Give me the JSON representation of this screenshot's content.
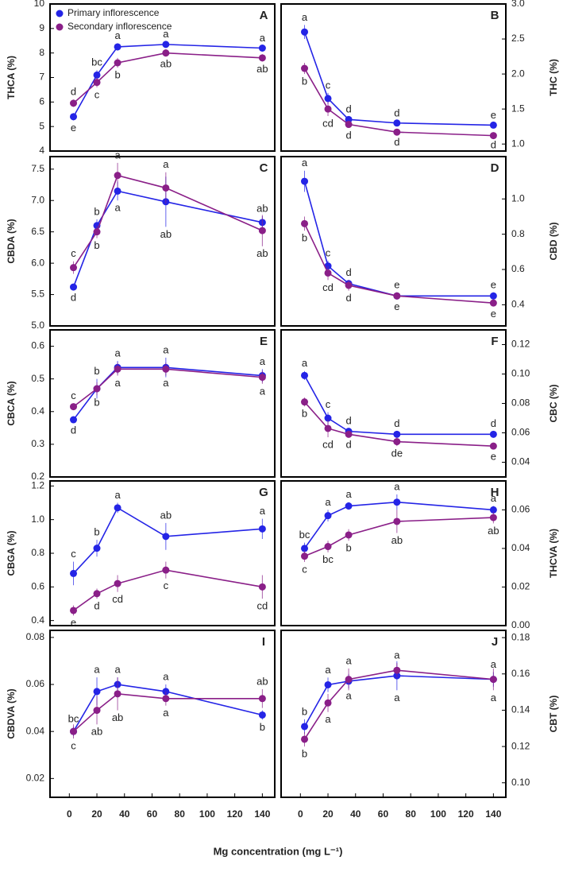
{
  "x_axis": {
    "x": [
      3,
      20,
      35,
      70,
      140
    ],
    "xlim": [
      -14,
      149
    ],
    "xticks": [
      0,
      20,
      40,
      60,
      80,
      100,
      120,
      140
    ],
    "xlabel": "Mg concentration (mg L⁻¹)"
  },
  "legend": [
    {
      "name": "Primary inflorescence",
      "color": "#2424e6"
    },
    {
      "name": "Secondary inflorescence",
      "color": "#8a1f88"
    }
  ],
  "chart_data": [
    {
      "type": "line",
      "panel": "A",
      "ylabel": "THCA (%)",
      "ylim": [
        4,
        10
      ],
      "yticks": [
        4,
        5,
        6,
        7,
        8,
        9,
        10
      ],
      "series": [
        {
          "color": "#2424e6",
          "values": [
            5.4,
            7.1,
            8.25,
            8.35,
            8.2
          ],
          "errors": [
            0.15,
            0.2,
            0.15,
            0.1,
            0.1
          ],
          "letters": [
            "e",
            "bc",
            "a",
            "a",
            "a"
          ]
        },
        {
          "color": "#8a1f88",
          "values": [
            5.95,
            6.8,
            7.6,
            8.0,
            7.8
          ],
          "errors": [
            0.15,
            0.2,
            0.2,
            0.15,
            0.15
          ],
          "letters": [
            "d",
            "c",
            "b",
            "ab",
            "ab"
          ]
        }
      ]
    },
    {
      "type": "line",
      "panel": "B",
      "ylabel": "THC (%)",
      "ylim": [
        0.9,
        3.0
      ],
      "yticks": [
        {
          "value": 1.0,
          "label": "1.0"
        },
        1.5,
        {
          "value": 2.0,
          "label": "2.0"
        },
        2.5,
        {
          "value": 3.0,
          "label": "3.0"
        }
      ],
      "series": [
        {
          "color": "#2424e6",
          "values": [
            2.6,
            1.65,
            1.35,
            1.3,
            1.27
          ],
          "errors": [
            0.1,
            0.08,
            0.04,
            0.03,
            0.03
          ],
          "letters": [
            "a",
            "c",
            "d",
            "d",
            "e"
          ]
        },
        {
          "color": "#8a1f88",
          "values": [
            2.08,
            1.5,
            1.28,
            1.17,
            1.12
          ],
          "errors": [
            0.08,
            0.1,
            0.05,
            0.04,
            0.03
          ],
          "letters": [
            "b",
            "cd",
            "d",
            "d",
            "d"
          ]
        }
      ]
    },
    {
      "type": "line",
      "panel": "C",
      "ylabel": "CBDA (%)",
      "ylim": [
        5.0,
        7.7
      ],
      "yticks": [
        {
          "value": 5.0,
          "label": "5.0"
        },
        5.5,
        {
          "value": 6.0,
          "label": "6.0"
        },
        6.5,
        {
          "value": 7.0,
          "label": "7.0"
        },
        7.5
      ],
      "series": [
        {
          "color": "#2424e6",
          "values": [
            5.62,
            6.6,
            7.15,
            6.98,
            6.65
          ],
          "errors": [
            0.05,
            0.1,
            0.15,
            0.4,
            0.1
          ],
          "letters": [
            "d",
            "b",
            "a",
            "ab",
            "ab"
          ]
        },
        {
          "color": "#8a1f88",
          "values": [
            5.93,
            6.5,
            7.4,
            7.2,
            6.52
          ],
          "errors": [
            0.1,
            0.1,
            0.2,
            0.25,
            0.25
          ],
          "letters": [
            "c",
            "b",
            "a",
            "a",
            "ab"
          ]
        }
      ]
    },
    {
      "type": "line",
      "panel": "D",
      "ylabel": "CBD (%)",
      "ylim": [
        0.28,
        1.24
      ],
      "yticks": [
        0.4,
        0.6,
        0.8,
        {
          "value": 1.0,
          "label": "1.0"
        }
      ],
      "series": [
        {
          "color": "#2424e6",
          "values": [
            1.1,
            0.62,
            0.52,
            0.45,
            0.45
          ],
          "errors": [
            0.06,
            0.03,
            0.02,
            0.02,
            0.02
          ],
          "letters": [
            "a",
            "c",
            "d",
            "e",
            "e"
          ]
        },
        {
          "color": "#8a1f88",
          "values": [
            0.86,
            0.58,
            0.51,
            0.45,
            0.41
          ],
          "errors": [
            0.04,
            0.04,
            0.03,
            0.02,
            0.02
          ],
          "letters": [
            "b",
            "cd",
            "d",
            "e",
            "e"
          ]
        }
      ]
    },
    {
      "type": "line",
      "panel": "E",
      "ylabel": "CBCA (%)",
      "ylim": [
        0.2,
        0.65
      ],
      "yticks": [
        0.2,
        0.3,
        0.4,
        0.5,
        0.6
      ],
      "series": [
        {
          "color": "#2424e6",
          "values": [
            0.375,
            0.47,
            0.535,
            0.535,
            0.51
          ],
          "errors": [
            0.01,
            0.03,
            0.02,
            0.03,
            0.02
          ],
          "letters": [
            "d",
            "b",
            "a",
            "a",
            "a"
          ]
        },
        {
          "color": "#8a1f88",
          "values": [
            0.415,
            0.47,
            0.53,
            0.53,
            0.505
          ],
          "errors": [
            0.01,
            0.02,
            0.02,
            0.02,
            0.02
          ],
          "letters": [
            "c",
            "b",
            "a",
            "a",
            "a"
          ]
        }
      ]
    },
    {
      "type": "line",
      "panel": "F",
      "ylabel": "CBC (%)",
      "ylim": [
        0.03,
        0.13
      ],
      "yticks": [
        0.04,
        0.06,
        0.08,
        {
          "value": 0.1,
          "label": "0.10"
        },
        0.12
      ],
      "series": [
        {
          "color": "#2424e6",
          "values": [
            0.099,
            0.07,
            0.061,
            0.059,
            0.059
          ],
          "errors": [
            0.003,
            0.004,
            0.002,
            0.002,
            0.002
          ],
          "letters": [
            "a",
            "c",
            "d",
            "d",
            "d"
          ]
        },
        {
          "color": "#8a1f88",
          "values": [
            0.081,
            0.063,
            0.059,
            0.054,
            0.051
          ],
          "errors": [
            0.003,
            0.006,
            0.002,
            0.003,
            0.002
          ],
          "letters": [
            "b",
            "cd",
            "d",
            "de",
            "e"
          ]
        }
      ]
    },
    {
      "type": "line",
      "panel": "G",
      "ylabel": "CBGA (%)",
      "ylim": [
        0.37,
        1.23
      ],
      "yticks": [
        0.4,
        0.6,
        0.8,
        {
          "value": 1.0,
          "label": "1.0"
        },
        1.2
      ],
      "series": [
        {
          "color": "#2424e6",
          "values": [
            0.68,
            0.83,
            1.07,
            0.9,
            0.945
          ],
          "errors": [
            0.07,
            0.05,
            0.03,
            0.08,
            0.06
          ],
          "letters": [
            "c",
            "b",
            "a",
            "ab",
            "a"
          ]
        },
        {
          "color": "#8a1f88",
          "values": [
            0.46,
            0.56,
            0.62,
            0.7,
            0.6
          ],
          "errors": [
            0.03,
            0.03,
            0.05,
            0.05,
            0.07
          ],
          "letters": [
            "e",
            "d",
            "cd",
            "c",
            "cd"
          ]
        }
      ]
    },
    {
      "type": "line",
      "panel": "H",
      "ylabel": "THCVA (%)",
      "ylim": [
        0,
        0.075
      ],
      "yticks": [
        {
          "value": 0,
          "label": "0.00"
        },
        0.02,
        0.04,
        0.06
      ],
      "series": [
        {
          "color": "#2424e6",
          "values": [
            0.04,
            0.057,
            0.062,
            0.064,
            0.06
          ],
          "errors": [
            0.003,
            0.003,
            0.002,
            0.004,
            0.002
          ],
          "letters": [
            "bc",
            "a",
            "a",
            "a",
            "a"
          ]
        },
        {
          "color": "#8a1f88",
          "values": [
            0.036,
            0.041,
            0.047,
            0.054,
            0.056
          ],
          "errors": [
            0.003,
            0.003,
            0.003,
            0.006,
            0.003
          ],
          "letters": [
            "c",
            "bc",
            "b",
            "ab",
            "ab"
          ]
        }
      ]
    },
    {
      "type": "line",
      "panel": "I",
      "ylabel": "CBDVA (%)",
      "ylim": [
        0.012,
        0.083
      ],
      "yticks": [
        0.02,
        0.04,
        0.06,
        0.08
      ],
      "series": [
        {
          "color": "#2424e6",
          "values": [
            0.04,
            0.057,
            0.06,
            0.057,
            0.047
          ],
          "errors": [
            0.002,
            0.006,
            0.003,
            0.003,
            0.002
          ],
          "letters": [
            "bc",
            "a",
            "a",
            "a",
            "b"
          ]
        },
        {
          "color": "#8a1f88",
          "values": [
            0.04,
            0.049,
            0.056,
            0.054,
            0.054
          ],
          "errors": [
            0.003,
            0.006,
            0.007,
            0.003,
            0.004
          ],
          "letters": [
            "c",
            "ab",
            "ab",
            "a",
            "ab"
          ]
        }
      ]
    },
    {
      "type": "line",
      "panel": "J",
      "ylabel": "CBT (%)",
      "ylim": [
        0.092,
        0.184
      ],
      "yticks": [
        {
          "value": 0.1,
          "label": "0.10"
        },
        0.12,
        0.14,
        0.16,
        0.18
      ],
      "series": [
        {
          "color": "#2424e6",
          "values": [
            0.131,
            0.154,
            0.156,
            0.159,
            0.157
          ],
          "errors": [
            0.004,
            0.004,
            0.004,
            0.008,
            0.004
          ],
          "letters": [
            "b",
            "a",
            "a",
            "a",
            "a"
          ]
        },
        {
          "color": "#8a1f88",
          "values": [
            0.124,
            0.144,
            0.157,
            0.162,
            0.157
          ],
          "errors": [
            0.004,
            0.005,
            0.006,
            0.004,
            0.006
          ],
          "letters": [
            "b",
            "a",
            "a",
            "a",
            "a"
          ]
        }
      ]
    }
  ]
}
